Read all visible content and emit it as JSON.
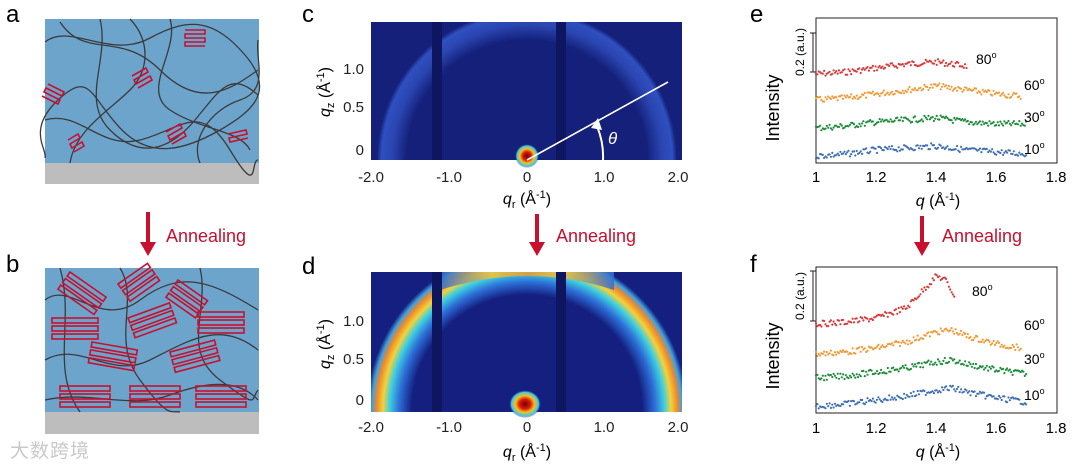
{
  "figure": {
    "panel_labels": [
      "a",
      "b",
      "c",
      "d",
      "e",
      "f"
    ],
    "annealing_label": "Annealing",
    "colors": {
      "accent_red": "#c8102e",
      "film_blue": "#6da4cc",
      "substrate_gray": "#bdbdbd"
    },
    "watermark": "大数跨境"
  },
  "giwaxs": {
    "x_label_main": "q",
    "x_label_sub": "r",
    "x_label_unit": "(Å",
    "x_label_exp": "-1",
    "x_label_close": ")",
    "y_label_main": "q",
    "y_label_sub": "z",
    "y_label_unit": "(Å",
    "y_label_exp": "-1",
    "y_label_close": ")",
    "x_ticks": [
      "-2.0",
      "-1.0",
      "0",
      "1.0",
      "2.0"
    ],
    "y_ticks": [
      "0",
      "0.5",
      "1.0"
    ],
    "theta_label": "θ"
  },
  "profiles": {
    "y_label": "Intensity",
    "scale_bar_label": "0.2 (a.u.)",
    "x_label_main": "q",
    "x_label_unit": "(Å",
    "x_label_exp": "-1",
    "x_label_close": ")",
    "x_ticks": [
      "1",
      "1.2",
      "1.4",
      "1.6",
      "1.8"
    ],
    "angle_labels": [
      "80",
      "60",
      "30",
      "10"
    ],
    "degree_mark": "o"
  },
  "chart_data": [
    {
      "panel": "e",
      "type": "scatter",
      "xlabel": "q (Å-1)",
      "ylabel": "Intensity",
      "xlim": [
        1.0,
        1.8
      ],
      "series": [
        {
          "name": "80o",
          "color": "#d83a3a",
          "x": [
            1.0,
            1.1,
            1.2,
            1.3,
            1.4,
            1.5
          ],
          "y": [
            0.0,
            0.01,
            0.03,
            0.05,
            0.06,
            0.04
          ]
        },
        {
          "name": "60o",
          "color": "#f39a36",
          "x": [
            1.0,
            1.1,
            1.2,
            1.3,
            1.4,
            1.5,
            1.6,
            1.68
          ],
          "y": [
            0.0,
            0.01,
            0.03,
            0.05,
            0.07,
            0.05,
            0.03,
            0.02
          ]
        },
        {
          "name": "30o",
          "color": "#1f8c3b",
          "x": [
            1.0,
            1.1,
            1.2,
            1.3,
            1.4,
            1.5,
            1.6,
            1.7
          ],
          "y": [
            0.0,
            0.01,
            0.03,
            0.04,
            0.05,
            0.03,
            0.02,
            0.02
          ]
        },
        {
          "name": "10o",
          "color": "#3f6fb5",
          "x": [
            1.0,
            1.1,
            1.2,
            1.3,
            1.4,
            1.5,
            1.6,
            1.7
          ],
          "y": [
            0.0,
            0.01,
            0.03,
            0.04,
            0.05,
            0.03,
            0.02,
            0.01
          ]
        }
      ]
    },
    {
      "panel": "f",
      "type": "scatter",
      "xlabel": "q (Å-1)",
      "ylabel": "Intensity",
      "xlim": [
        1.0,
        1.8
      ],
      "series": [
        {
          "name": "80o",
          "color": "#d83a3a",
          "x": [
            1.0,
            1.1,
            1.2,
            1.3,
            1.35,
            1.4,
            1.43,
            1.46
          ],
          "y": [
            0.0,
            0.01,
            0.03,
            0.08,
            0.16,
            0.24,
            0.22,
            0.14
          ]
        },
        {
          "name": "60o",
          "color": "#f39a36",
          "x": [
            1.0,
            1.1,
            1.2,
            1.3,
            1.4,
            1.45,
            1.5,
            1.6,
            1.68
          ],
          "y": [
            0.0,
            0.01,
            0.03,
            0.06,
            0.11,
            0.12,
            0.09,
            0.05,
            0.03
          ]
        },
        {
          "name": "30o",
          "color": "#1f8c3b",
          "x": [
            1.0,
            1.1,
            1.2,
            1.3,
            1.4,
            1.45,
            1.5,
            1.6,
            1.7
          ],
          "y": [
            0.0,
            0.01,
            0.03,
            0.05,
            0.08,
            0.09,
            0.07,
            0.04,
            0.02
          ]
        },
        {
          "name": "10o",
          "color": "#3f6fb5",
          "x": [
            1.0,
            1.1,
            1.2,
            1.3,
            1.4,
            1.45,
            1.5,
            1.6,
            1.7
          ],
          "y": [
            0.0,
            0.01,
            0.03,
            0.05,
            0.08,
            0.09,
            0.07,
            0.04,
            0.02
          ]
        }
      ]
    }
  ]
}
